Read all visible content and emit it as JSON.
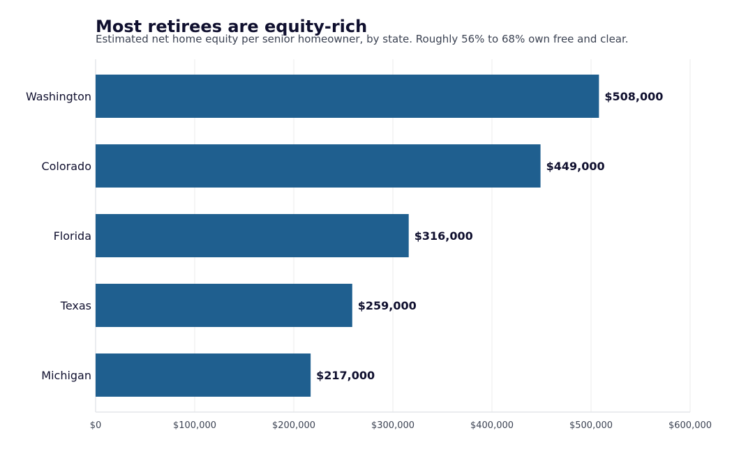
{
  "chart_data": {
    "type": "bar",
    "orientation": "horizontal",
    "title": "Most retirees are equity-rich",
    "subtitle": "Estimated net home equity per senior homeowner, by state. Roughly 56% to 68% own free and clear.",
    "xlabel": "",
    "ylabel": "",
    "categories": [
      "Washington",
      "Colorado",
      "Florida",
      "Texas",
      "Michigan"
    ],
    "values": [
      508000,
      449000,
      316000,
      259000,
      217000
    ],
    "data_labels": [
      "$508,000",
      "$449,000",
      "$316,000",
      "$259,000",
      "$217,000"
    ],
    "xlim": [
      0,
      600000
    ],
    "xticks": [
      0,
      100000,
      200000,
      300000,
      400000,
      500000,
      600000
    ],
    "xtick_labels": [
      "$0",
      "$100,000",
      "$200,000",
      "$300,000",
      "$400,000",
      "$500,000",
      "$600,000"
    ],
    "grid": "vertical",
    "legend": "none",
    "bar_color": "#1f5f8f"
  }
}
